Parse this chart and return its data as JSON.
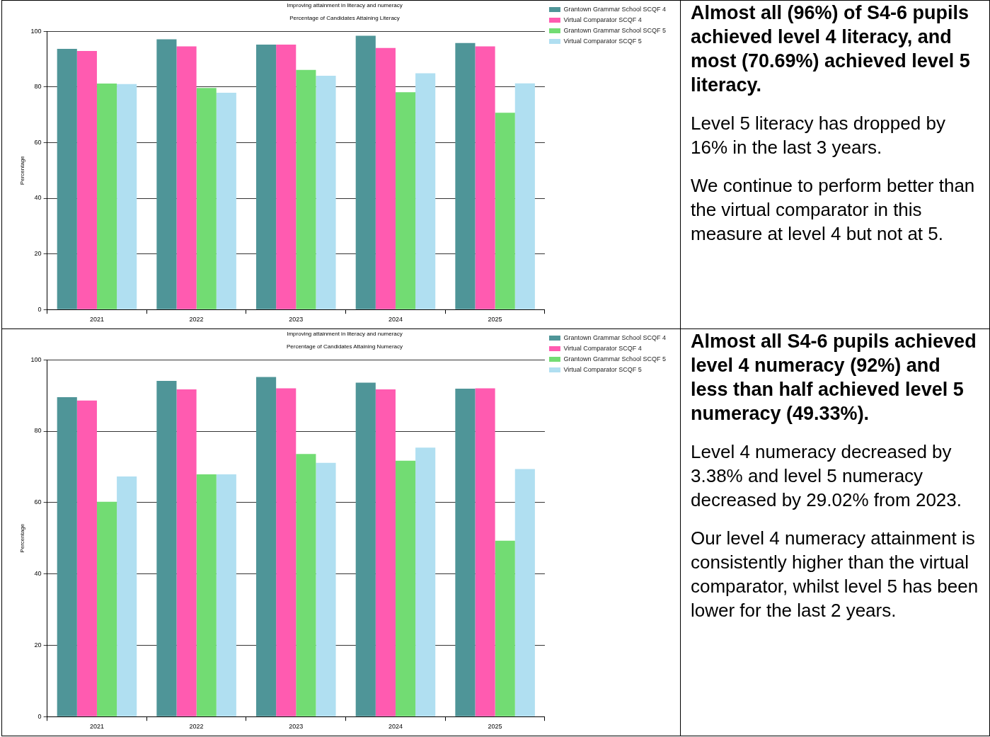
{
  "chart_data": [
    {
      "type": "bar",
      "title": "Improving attainment in literacy and numeracy",
      "subtitle": "Percentage of Candidates Attaining Literacy",
      "ylabel": "Percentage",
      "categories": [
        "2021",
        "2022",
        "2023",
        "2024",
        "2025"
      ],
      "series": [
        {
          "name": "Grantown Grammar School SCQF 4",
          "color": "#4f9598",
          "values": [
            93.7,
            97.1,
            95.2,
            98.4,
            95.8
          ]
        },
        {
          "name": "Virtual Comparator SCQF 4",
          "color": "#ff5bb0",
          "values": [
            92.9,
            94.6,
            95.2,
            94.0,
            94.6
          ]
        },
        {
          "name": "Grantown Grammar School SCQF 5",
          "color": "#72dc73",
          "values": [
            81.2,
            79.6,
            86.1,
            78.1,
            70.7
          ]
        },
        {
          "name": "Virtual Comparator SCQF 5",
          "color": "#b0dff1",
          "values": [
            81.0,
            77.9,
            84.0,
            84.9,
            81.3
          ]
        }
      ],
      "ylim": [
        0,
        100
      ],
      "yticks": [
        0,
        20,
        40,
        60,
        80,
        100
      ],
      "grid": "y",
      "legend": "top right"
    },
    {
      "type": "other",
      "title": "Almost all (96%) of S4-6 pupils achieved level 4 literacy, and most (70.69%) achieved level 5 literacy.",
      "annotations": [
        "Level 5 literacy has dropped by 16% in the last 3 years.",
        "We continue to perform better than the virtual comparator in this measure at level 4 but not at 5."
      ]
    },
    {
      "type": "bar",
      "title": "Improving attainment in literacy and numeracy",
      "subtitle": "Percentage of Candidates Attaining Numeracy",
      "ylabel": "Percentage",
      "categories": [
        "2021",
        "2022",
        "2023",
        "2024",
        "2025"
      ],
      "series": [
        {
          "name": "Grantown Grammar School SCQF 4",
          "color": "#4f9598",
          "values": [
            89.5,
            94.1,
            95.2,
            93.6,
            91.9
          ]
        },
        {
          "name": "Virtual Comparator SCQF 4",
          "color": "#ff5bb0",
          "values": [
            88.6,
            91.7,
            92.0,
            91.7,
            92.0
          ]
        },
        {
          "name": "Grantown Grammar School SCQF 5",
          "color": "#72dc73",
          "values": [
            60.2,
            67.9,
            73.6,
            71.7,
            49.3
          ]
        },
        {
          "name": "Virtual Comparator SCQF 5",
          "color": "#b0dff1",
          "values": [
            67.3,
            67.9,
            71.1,
            75.4,
            69.4
          ]
        }
      ],
      "ylim": [
        0,
        100
      ],
      "yticks": [
        0,
        20,
        40,
        60,
        80,
        100
      ],
      "grid": "y",
      "legend": "top right"
    },
    {
      "type": "other",
      "title": "Almost all S4-6 pupils achieved level 4 numeracy (92%) and less than half achieved level 5 numeracy (49.33%).",
      "annotations": [
        "Level 4 numeracy decreased by 3.38% and level 5 numeracy decreased by 29.02% from 2023.",
        "Our level 4 numeracy attainment is consistently higher than the virtual comparator, whilst level 5 has been lower for the last 2 years."
      ]
    }
  ]
}
